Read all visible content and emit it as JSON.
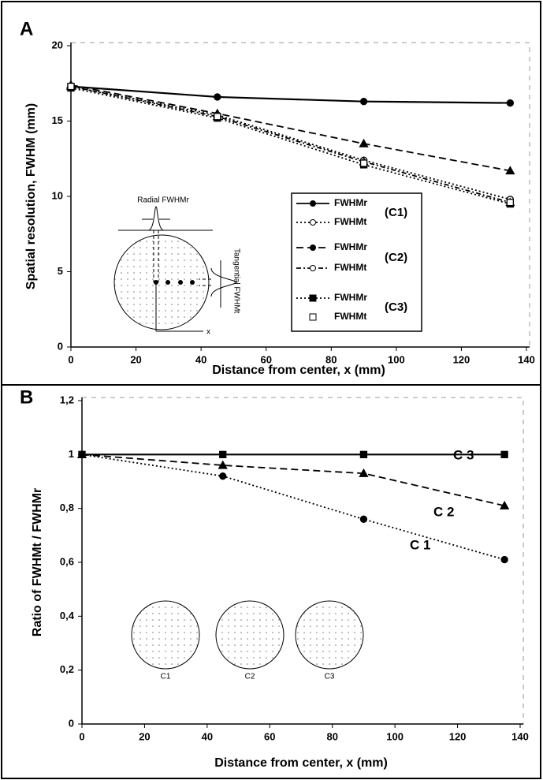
{
  "chart_data": [
    {
      "type": "line",
      "panel_label": "A",
      "xlabel": "Distance from center, x (mm)",
      "ylabel": "Spatial resolution, FWHM (mm)",
      "x": [
        0,
        45,
        90,
        135
      ],
      "xlim": [
        0,
        140
      ],
      "xticks": [
        0,
        20,
        40,
        60,
        80,
        100,
        120,
        140
      ],
      "ylim": [
        0,
        20
      ],
      "yticks": [
        0,
        5,
        10,
        15,
        20
      ],
      "series": [
        {
          "name": "FWHMr",
          "color": "#000000",
          "dash": "solid",
          "marker": "circle",
          "filled": true,
          "values": [
            17.3,
            16.6,
            16.3,
            16.2
          ]
        },
        {
          "name": "FWHMt",
          "color": "#000000",
          "dash": "dotted",
          "marker": "circle",
          "filled": false,
          "values": [
            17.3,
            15.4,
            12.4,
            9.8
          ]
        },
        {
          "name": "FWHMr",
          "color": "#000000",
          "dash": "dashed",
          "marker": "triangle",
          "filled": true,
          "values": [
            17.4,
            15.5,
            13.5,
            11.7
          ]
        },
        {
          "name": "FWHMt",
          "color": "#000000",
          "dash": "dashdot",
          "marker": "triangle",
          "filled": false,
          "values": [
            17.3,
            15.3,
            12.3,
            9.6
          ]
        },
        {
          "name": "FWHMr",
          "color": "#000000",
          "dash": "dotted",
          "marker": "square",
          "filled": true,
          "values": [
            17.2,
            15.2,
            12.1,
            9.5
          ]
        },
        {
          "name": "FWHMt",
          "color": "#000000",
          "dash": "none",
          "marker": "square",
          "filled": false,
          "values": [
            17.3,
            15.3,
            12.2,
            9.6
          ]
        }
      ],
      "legend_groups": [
        "(C1)",
        "(C2)",
        "(C3)"
      ],
      "inset_labels": [
        "Radial FWHMr",
        "Tangential FWHMt",
        "x"
      ]
    },
    {
      "type": "line",
      "panel_label": "B",
      "xlabel": "Distance from center, x (mm)",
      "ylabel": "Ratio of  FWHMt / FWHMr",
      "x": [
        0,
        45,
        90,
        135
      ],
      "xlim": [
        0,
        140
      ],
      "xticks": [
        0,
        20,
        40,
        60,
        80,
        100,
        120,
        140
      ],
      "ylim": [
        0,
        1.2
      ],
      "yticks": [
        0,
        {
          "value": 0.2,
          "label": "0,2"
        },
        {
          "value": 0.4,
          "label": "0,4"
        },
        {
          "value": 0.6,
          "label": "0,6"
        },
        {
          "value": 0.8,
          "label": "0,8"
        },
        1,
        {
          "value": 1.2,
          "label": "1,2"
        }
      ],
      "series": [
        {
          "name": "C 3",
          "color": "#000000",
          "dash": "solid",
          "marker": "square",
          "filled": true,
          "values": [
            1,
            1,
            1,
            1
          ]
        },
        {
          "name": "C 2",
          "color": "#000000",
          "dash": "dashed",
          "marker": "triangle",
          "filled": true,
          "values": [
            1,
            0.96,
            0.93,
            0.81
          ]
        },
        {
          "name": "C 1",
          "color": "#000000",
          "dash": "dotted",
          "marker": "circle",
          "filled": true,
          "values": [
            1,
            0.92,
            0.76,
            0.61
          ]
        }
      ],
      "inset_labels": [
        "C1",
        "C2",
        "C3"
      ]
    }
  ]
}
